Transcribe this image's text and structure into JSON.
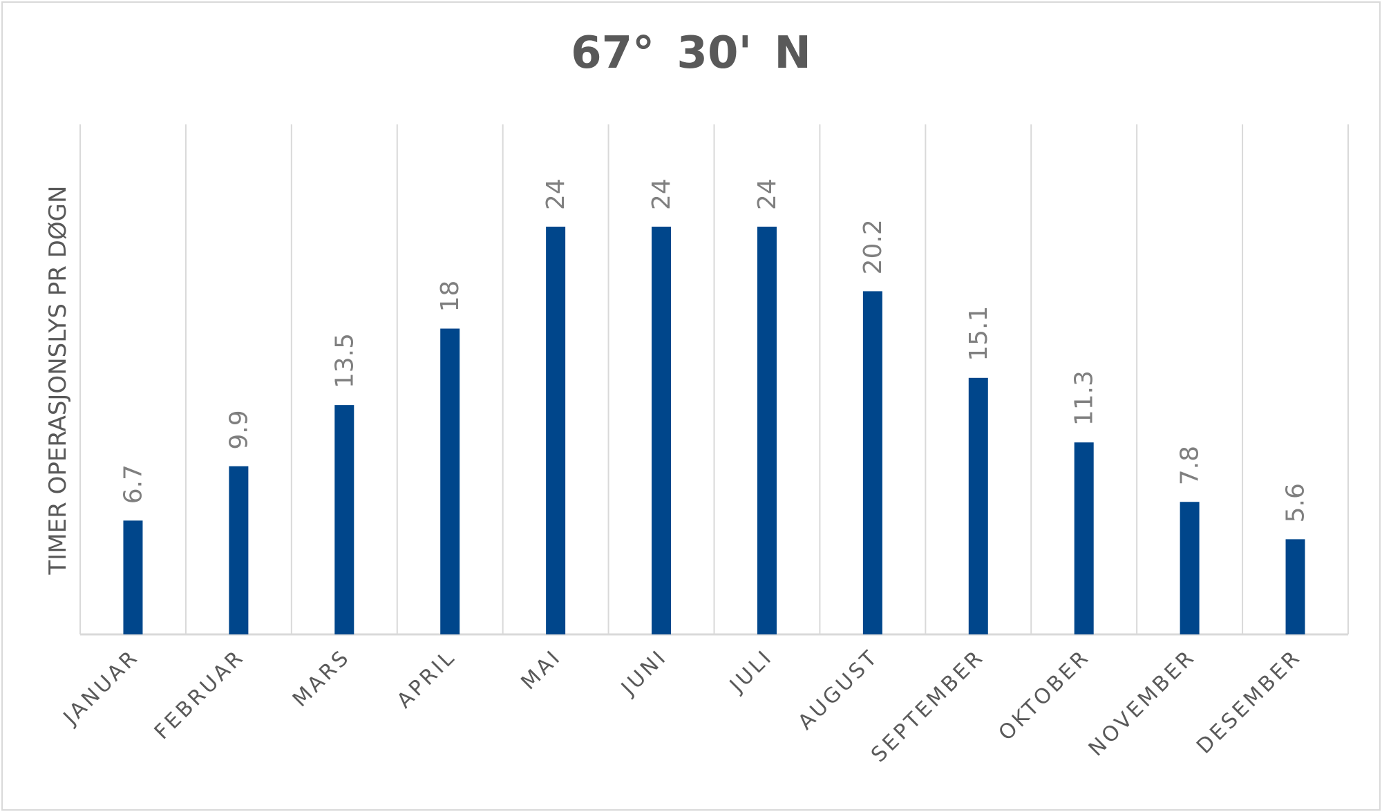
{
  "chart_data": {
    "type": "bar",
    "title": "67° 30' N",
    "ylabel": "TIMER OPERASJONSLYS PR DØGN",
    "xlabel": "",
    "categories": [
      "JANUAR",
      "FEBRUAR",
      "MARS",
      "APRIL",
      "MAI",
      "JUNI",
      "JULI",
      "AUGUST",
      "SEPTEMBER",
      "OKTOBER",
      "NOVEMBER",
      "DESEMBER"
    ],
    "values": [
      6.7,
      9.9,
      13.5,
      18,
      24,
      24,
      24,
      20.2,
      15.1,
      11.3,
      7.8,
      5.6
    ],
    "data_labels": [
      "6.7",
      "9.9",
      "13.5",
      "18",
      "24",
      "24",
      "24",
      "20.2",
      "15.1",
      "11.3",
      "7.8",
      "5.6"
    ],
    "ylim": [
      0,
      30
    ],
    "grid": "vertical",
    "colors": {
      "bar": "#00468b",
      "grid": "#d9d9d9",
      "text": "#595959"
    }
  }
}
